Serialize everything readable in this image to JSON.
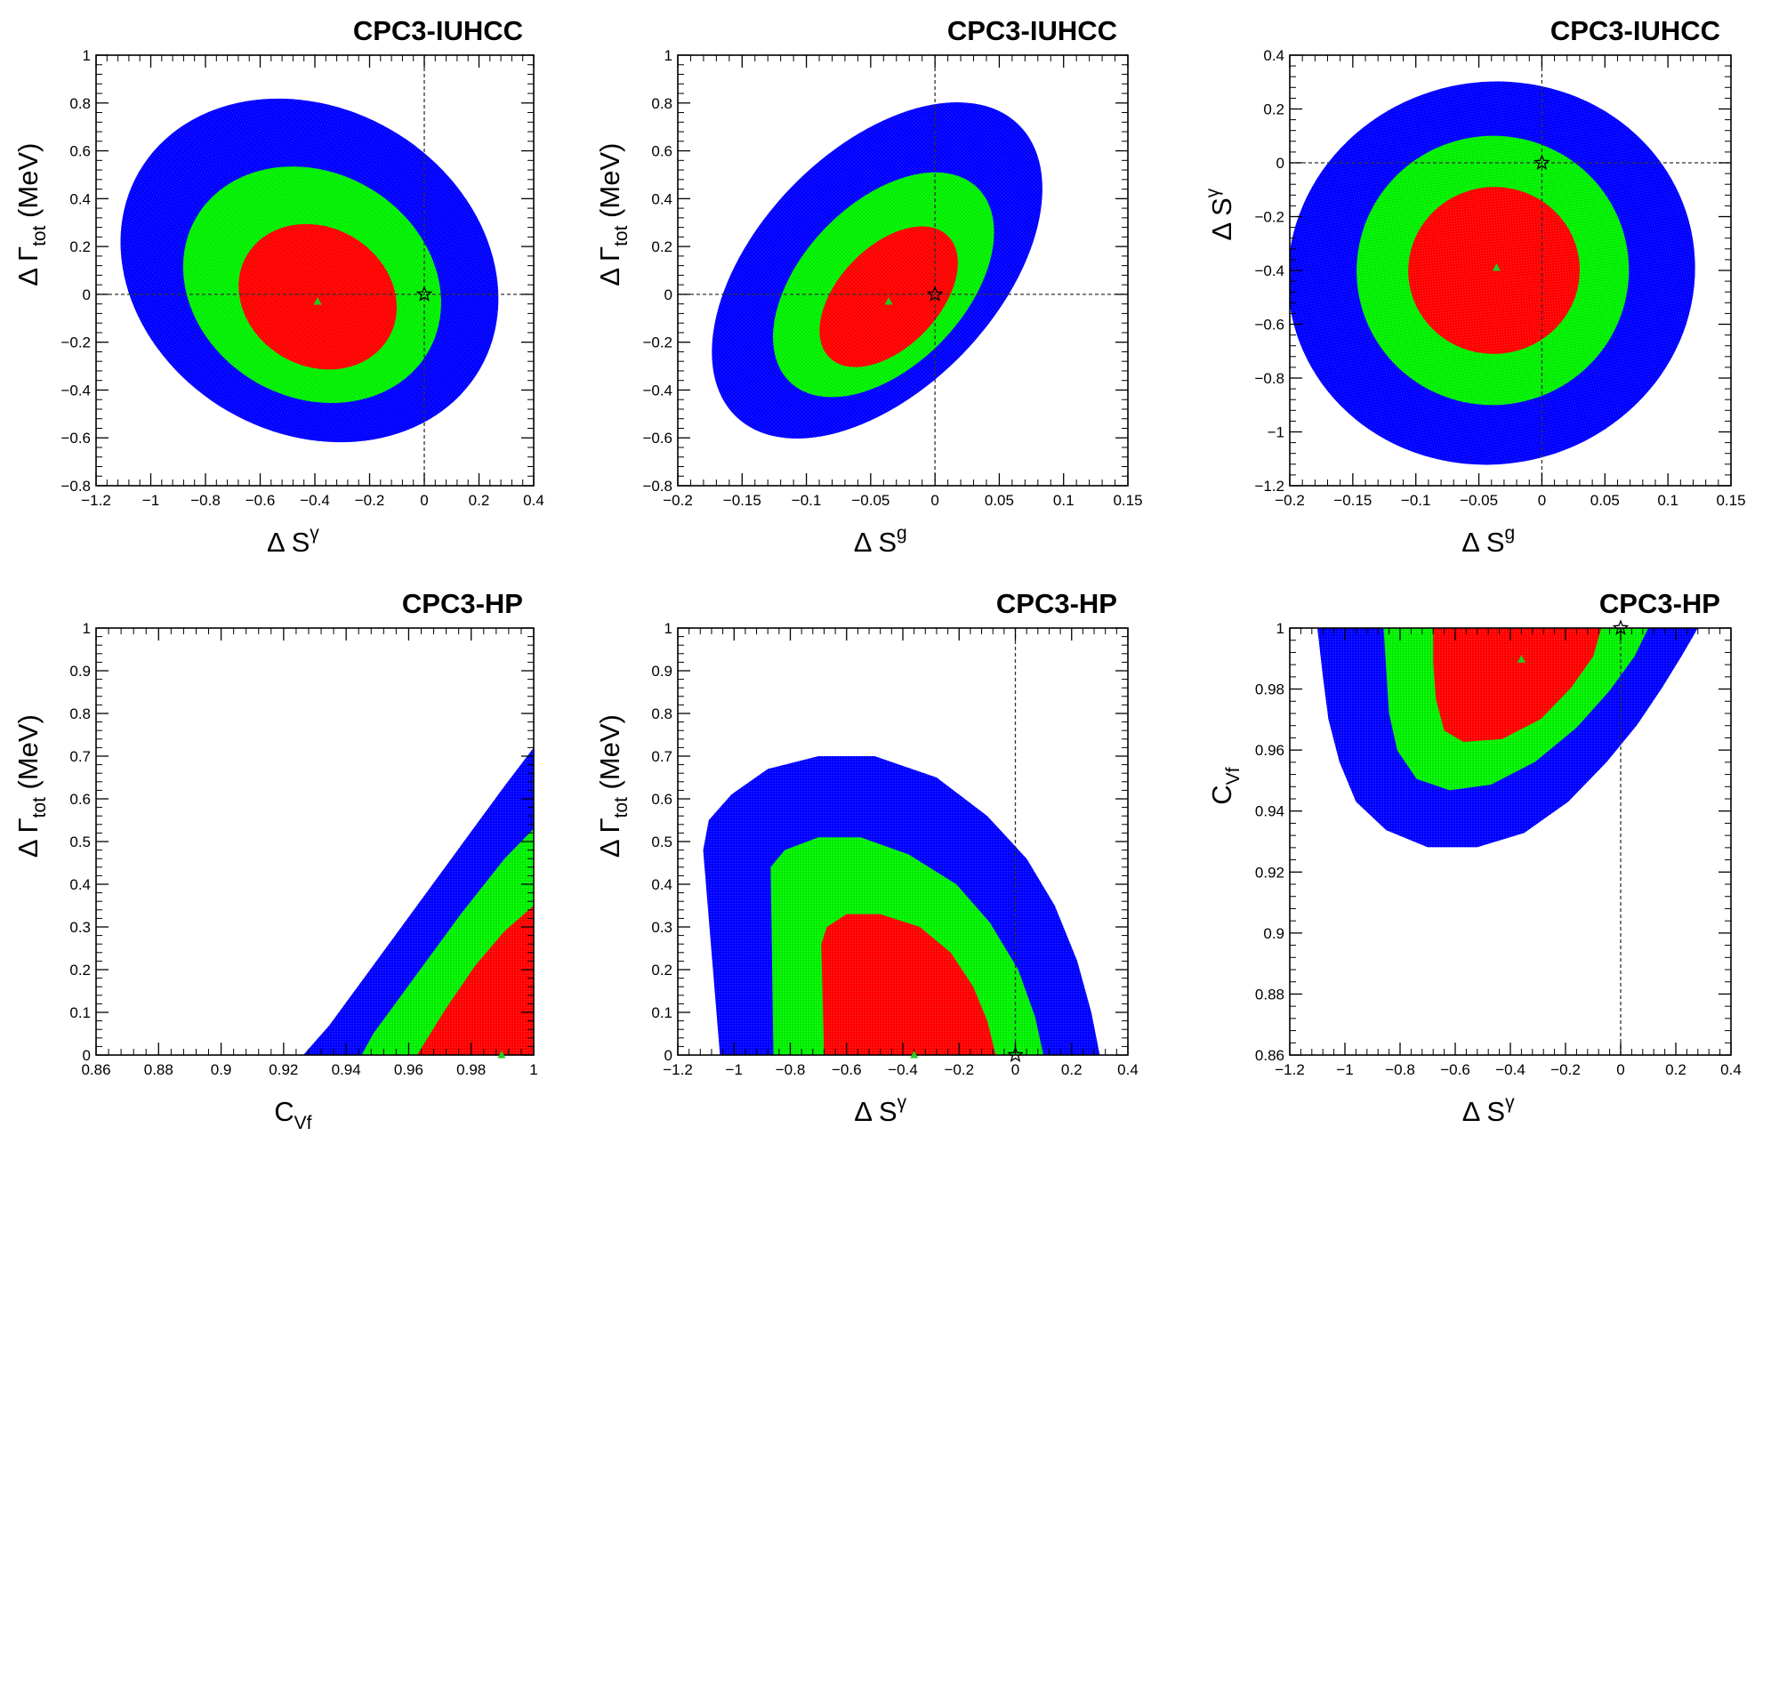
{
  "colors": {
    "region_inner": "#ff0000",
    "region_middle": "#00ee00",
    "region_outer": "#0000ff",
    "best_fit_marker": "#22cc22",
    "sm_marker": "#000000"
  },
  "chart_data": [
    {
      "type": "scatter",
      "title": "CPC3-IUHCC",
      "xlabel": {
        "base": "Δ S",
        "sup": "γ",
        "sub": ""
      },
      "ylabel": {
        "base": "Δ Γ",
        "sub": "tot",
        "sup": "",
        "suffix": " (MeV)"
      },
      "xlim": [
        -1.2,
        0.4
      ],
      "ylim": [
        -0.8,
        1.0
      ],
      "xticks": [
        "−1.2",
        "−1",
        "−0.8",
        "−0.6",
        "−0.4",
        "−0.2",
        "0",
        "0.2",
        "0.4"
      ],
      "yticks": [
        "−0.8",
        "−0.6",
        "−0.4",
        "−0.2",
        "0",
        "0.2",
        "0.4",
        "0.6",
        "0.8",
        "1"
      ],
      "reference_lines": {
        "x": 0,
        "y": 0
      },
      "best_fit": [
        -0.39,
        -0.03
      ],
      "sm_point": [
        0,
        0
      ],
      "regions": [
        {
          "level": "outer",
          "center": [
            -0.42,
            0.1
          ],
          "semi_axes": [
            0.72,
            0.68
          ],
          "rotation_deg": -30
        },
        {
          "level": "middle",
          "center": [
            -0.41,
            0.04
          ],
          "semi_axes": [
            0.49,
            0.47
          ],
          "rotation_deg": -30
        },
        {
          "level": "inner",
          "center": [
            -0.39,
            -0.01
          ],
          "semi_axes": [
            0.3,
            0.29
          ],
          "rotation_deg": -30
        }
      ]
    },
    {
      "type": "scatter",
      "title": "CPC3-IUHCC",
      "xlabel": {
        "base": "Δ S",
        "sup": "g",
        "sub": ""
      },
      "ylabel": {
        "base": "Δ Γ",
        "sub": "tot",
        "sup": "",
        "suffix": " (MeV)"
      },
      "xlim": [
        -0.2,
        0.15
      ],
      "ylim": [
        -0.8,
        1.0
      ],
      "xticks": [
        "−0.2",
        "−0.15",
        "−0.1",
        "−0.05",
        "0",
        "0.05",
        "0.1",
        "0.15"
      ],
      "yticks": [
        "−0.8",
        "−0.6",
        "−0.4",
        "−0.2",
        "0",
        "0.2",
        "0.4",
        "0.6",
        "0.8",
        "1"
      ],
      "reference_lines": {
        "x": 0,
        "y": 0
      },
      "best_fit": [
        -0.036,
        -0.03
      ],
      "sm_point": [
        0,
        0
      ],
      "regions": [
        {
          "level": "outer",
          "center": [
            -0.045,
            0.1
          ],
          "semi_axes": [
            0.158,
            0.5
          ],
          "rotation_deg": 46
        },
        {
          "level": "middle",
          "center": [
            -0.04,
            0.04
          ],
          "semi_axes": [
            0.105,
            0.34
          ],
          "rotation_deg": 46
        },
        {
          "level": "inner",
          "center": [
            -0.036,
            -0.01
          ],
          "semi_axes": [
            0.066,
            0.21
          ],
          "rotation_deg": 46
        }
      ]
    },
    {
      "type": "scatter",
      "title": "CPC3-IUHCC",
      "xlabel": {
        "base": "Δ S",
        "sup": "g",
        "sub": ""
      },
      "ylabel": {
        "base": "Δ S",
        "sup": "γ",
        "sub": "",
        "suffix": ""
      },
      "xlim": [
        -0.2,
        0.15
      ],
      "ylim": [
        -1.2,
        0.4
      ],
      "xticks": [
        "−0.2",
        "−0.15",
        "−0.1",
        "−0.05",
        "0",
        "0.05",
        "0.1",
        "0.15"
      ],
      "yticks": [
        "−1.2",
        "−1",
        "−0.8",
        "−0.6",
        "−0.4",
        "−0.2",
        "0",
        "0.2",
        "0.4"
      ],
      "reference_lines": {
        "x": 0,
        "y": 0
      },
      "best_fit": [
        -0.036,
        -0.39
      ],
      "sm_point": [
        0,
        0
      ],
      "regions": [
        {
          "level": "outer",
          "center": [
            -0.04,
            -0.41
          ],
          "semi_axes": [
            0.162,
            0.71
          ],
          "rotation_deg": 12
        },
        {
          "level": "middle",
          "center": [
            -0.039,
            -0.4
          ],
          "semi_axes": [
            0.108,
            0.5
          ],
          "rotation_deg": 8
        },
        {
          "level": "inner",
          "center": [
            -0.038,
            -0.4
          ],
          "semi_axes": [
            0.068,
            0.31
          ],
          "rotation_deg": 5
        }
      ]
    },
    {
      "type": "scatter",
      "title": "CPC3-HP",
      "xlabel": {
        "base": "C",
        "sub": "Vf",
        "sup": ""
      },
      "ylabel": {
        "base": "Δ Γ",
        "sub": "tot",
        "sup": "",
        "suffix": " (MeV)"
      },
      "xlim": [
        0.85,
        1.0
      ],
      "ylim": [
        0,
        1.0
      ],
      "xticks": [
        "0.86",
        "0.88",
        "0.9",
        "0.92",
        "0.94",
        "0.96",
        "0.98",
        "1"
      ],
      "yticks": [
        "0",
        "0.1",
        "0.2",
        "0.3",
        "0.4",
        "0.5",
        "0.6",
        "0.7",
        "0.8",
        "0.9",
        "1"
      ],
      "reference_lines": {},
      "best_fit": [
        0.989,
        0.0
      ],
      "sm_point": null,
      "regions": [
        {
          "level": "outer",
          "polygon": [
            [
              0.921,
              0
            ],
            [
              1.0,
              0
            ],
            [
              1.0,
              0.72
            ],
            [
              0.99,
              0.63
            ],
            [
              0.975,
              0.49
            ],
            [
              0.96,
              0.35
            ],
            [
              0.945,
              0.21
            ],
            [
              0.93,
              0.07
            ]
          ]
        },
        {
          "level": "middle",
          "polygon": [
            [
              0.941,
              0
            ],
            [
              1.0,
              0
            ],
            [
              1.0,
              0.53
            ],
            [
              0.99,
              0.46
            ],
            [
              0.975,
              0.33
            ],
            [
              0.96,
              0.19
            ],
            [
              0.945,
              0.05
            ]
          ]
        },
        {
          "level": "inner",
          "polygon": [
            [
              0.96,
              0
            ],
            [
              1.0,
              0
            ],
            [
              1.0,
              0.35
            ],
            [
              0.99,
              0.29
            ],
            [
              0.98,
              0.21
            ],
            [
              0.97,
              0.11
            ]
          ]
        }
      ]
    },
    {
      "type": "scatter",
      "title": "CPC3-HP",
      "xlabel": {
        "base": "Δ S",
        "sup": "γ",
        "sub": ""
      },
      "ylabel": {
        "base": "Δ Γ",
        "sub": "tot",
        "sup": "",
        "suffix": " (MeV)"
      },
      "xlim": [
        -1.2,
        0.4
      ],
      "ylim": [
        0,
        1.0
      ],
      "xticks": [
        "−1.2",
        "−1",
        "−0.8",
        "−0.6",
        "−0.4",
        "−0.2",
        "0",
        "0.2",
        "0.4"
      ],
      "yticks": [
        "0",
        "0.1",
        "0.2",
        "0.3",
        "0.4",
        "0.5",
        "0.6",
        "0.7",
        "0.8",
        "0.9",
        "1"
      ],
      "reference_lines": {
        "x": 0
      },
      "best_fit": [
        -0.36,
        0.0
      ],
      "sm_point": [
        0,
        0
      ],
      "regions": [
        {
          "level": "outer",
          "polygon": [
            [
              -1.05,
              0
            ],
            [
              0.3,
              0
            ],
            [
              0.27,
              0.1
            ],
            [
              0.22,
              0.22
            ],
            [
              0.14,
              0.35
            ],
            [
              0.04,
              0.46
            ],
            [
              -0.1,
              0.56
            ],
            [
              -0.28,
              0.65
            ],
            [
              -0.5,
              0.7
            ],
            [
              -0.7,
              0.7
            ],
            [
              -0.88,
              0.67
            ],
            [
              -1.01,
              0.61
            ],
            [
              -1.09,
              0.55
            ],
            [
              -1.11,
              0.48
            ]
          ]
        },
        {
          "level": "middle",
          "polygon": [
            [
              -0.86,
              0
            ],
            [
              0.1,
              0
            ],
            [
              0.07,
              0.09
            ],
            [
              0.01,
              0.2
            ],
            [
              -0.09,
              0.31
            ],
            [
              -0.21,
              0.4
            ],
            [
              -0.38,
              0.47
            ],
            [
              -0.55,
              0.51
            ],
            [
              -0.7,
              0.51
            ],
            [
              -0.82,
              0.48
            ],
            [
              -0.87,
              0.44
            ]
          ]
        },
        {
          "level": "inner",
          "polygon": [
            [
              -0.68,
              0
            ],
            [
              -0.07,
              0
            ],
            [
              -0.1,
              0.08
            ],
            [
              -0.15,
              0.16
            ],
            [
              -0.23,
              0.24
            ],
            [
              -0.34,
              0.3
            ],
            [
              -0.48,
              0.33
            ],
            [
              -0.6,
              0.33
            ],
            [
              -0.67,
              0.3
            ],
            [
              -0.69,
              0.26
            ]
          ]
        }
      ]
    },
    {
      "type": "scatter",
      "title": "CPC3-HP",
      "xlabel": {
        "base": "Δ S",
        "sup": "γ",
        "sub": ""
      },
      "ylabel": {
        "base": "C",
        "sub": "Vf",
        "sup": "",
        "suffix": ""
      },
      "xlim": [
        -1.2,
        0.4
      ],
      "ylim": [
        0.85,
        1.0
      ],
      "xticks": [
        "−1.2",
        "−1",
        "−0.8",
        "−0.6",
        "−0.4",
        "−0.2",
        "0",
        "0.2",
        "0.4"
      ],
      "yticks": [
        "0.86",
        "0.88",
        "0.9",
        "0.92",
        "0.94",
        "0.96",
        "0.98",
        "1"
      ],
      "reference_lines": {
        "x": 0
      },
      "best_fit": [
        -0.36,
        0.989
      ],
      "sm_point": [
        0,
        1.0
      ],
      "regions": [
        {
          "level": "outer",
          "polygon": [
            [
              -1.1,
              1.0
            ],
            [
              0.28,
              1.0
            ],
            [
              0.22,
              0.99
            ],
            [
              0.15,
              0.979
            ],
            [
              0.06,
              0.966
            ],
            [
              -0.05,
              0.953
            ],
            [
              -0.19,
              0.939
            ],
            [
              -0.35,
              0.928
            ],
            [
              -0.52,
              0.923
            ],
            [
              -0.7,
              0.923
            ],
            [
              -0.85,
              0.929
            ],
            [
              -0.96,
              0.939
            ],
            [
              -1.02,
              0.953
            ],
            [
              -1.06,
              0.968
            ],
            [
              -1.08,
              0.983
            ]
          ]
        },
        {
          "level": "middle",
          "polygon": [
            [
              -0.86,
              1.0
            ],
            [
              0.1,
              1.0
            ],
            [
              0.05,
              0.99
            ],
            [
              -0.04,
              0.978
            ],
            [
              -0.16,
              0.965
            ],
            [
              -0.31,
              0.953
            ],
            [
              -0.47,
              0.945
            ],
            [
              -0.62,
              0.943
            ],
            [
              -0.74,
              0.947
            ],
            [
              -0.81,
              0.957
            ],
            [
              -0.84,
              0.97
            ],
            [
              -0.85,
              0.985
            ]
          ]
        },
        {
          "level": "inner",
          "polygon": [
            [
              -0.68,
              1.0
            ],
            [
              -0.07,
              1.0
            ],
            [
              -0.1,
              0.99
            ],
            [
              -0.18,
              0.979
            ],
            [
              -0.29,
              0.968
            ],
            [
              -0.43,
              0.961
            ],
            [
              -0.57,
              0.96
            ],
            [
              -0.64,
              0.964
            ],
            [
              -0.67,
              0.975
            ],
            [
              -0.68,
              0.988
            ]
          ]
        }
      ]
    }
  ]
}
